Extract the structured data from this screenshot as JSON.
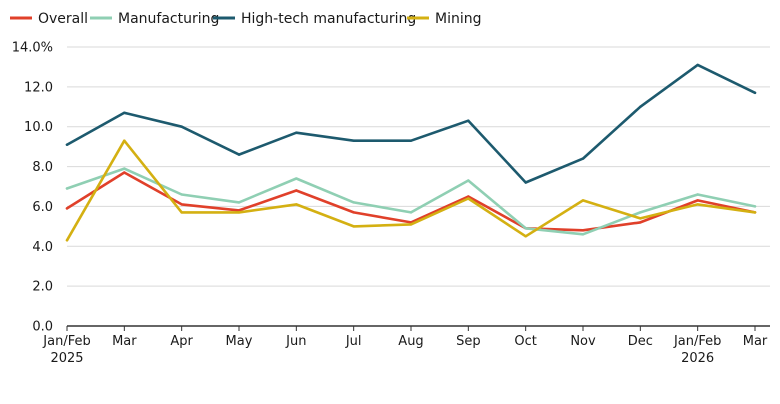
{
  "chart_data": {
    "type": "line",
    "categories": [
      "Jan/Feb\n2025",
      "Mar",
      "Apr",
      "May",
      "Jun",
      "Jul",
      "Aug",
      "Sep",
      "Oct",
      "Nov",
      "Dec",
      "Jan/Feb\n2026",
      "Mar"
    ],
    "series": [
      {
        "name": "Overall",
        "color": "#e0402a",
        "values": [
          5.9,
          7.7,
          6.1,
          5.8,
          6.8,
          5.7,
          5.2,
          6.5,
          4.9,
          4.8,
          5.2,
          6.3,
          5.7
        ]
      },
      {
        "name": "Manufacturing",
        "color": "#8fcfb3",
        "values": [
          6.9,
          7.9,
          6.6,
          6.2,
          7.4,
          6.2,
          5.7,
          7.3,
          4.9,
          4.6,
          5.7,
          6.6,
          6.0
        ]
      },
      {
        "name": "High-tech manufacturing",
        "color": "#1d5a6e",
        "values": [
          9.1,
          10.7,
          10.0,
          8.6,
          9.7,
          9.3,
          9.3,
          10.3,
          7.2,
          8.4,
          11.0,
          13.1,
          11.7
        ]
      },
      {
        "name": "Mining",
        "color": "#d4b012",
        "values": [
          4.3,
          9.3,
          5.7,
          5.7,
          6.1,
          5.0,
          5.1,
          6.4,
          4.5,
          6.3,
          5.4,
          6.1,
          5.7
        ]
      }
    ],
    "yticks": [
      "0.0",
      "2.0",
      "4.0",
      "6.0",
      "8.0",
      "10.0",
      "12.0",
      "14.0%"
    ],
    "ylim": [
      0,
      14
    ],
    "grid": "horizontal",
    "legend": "top-left"
  }
}
